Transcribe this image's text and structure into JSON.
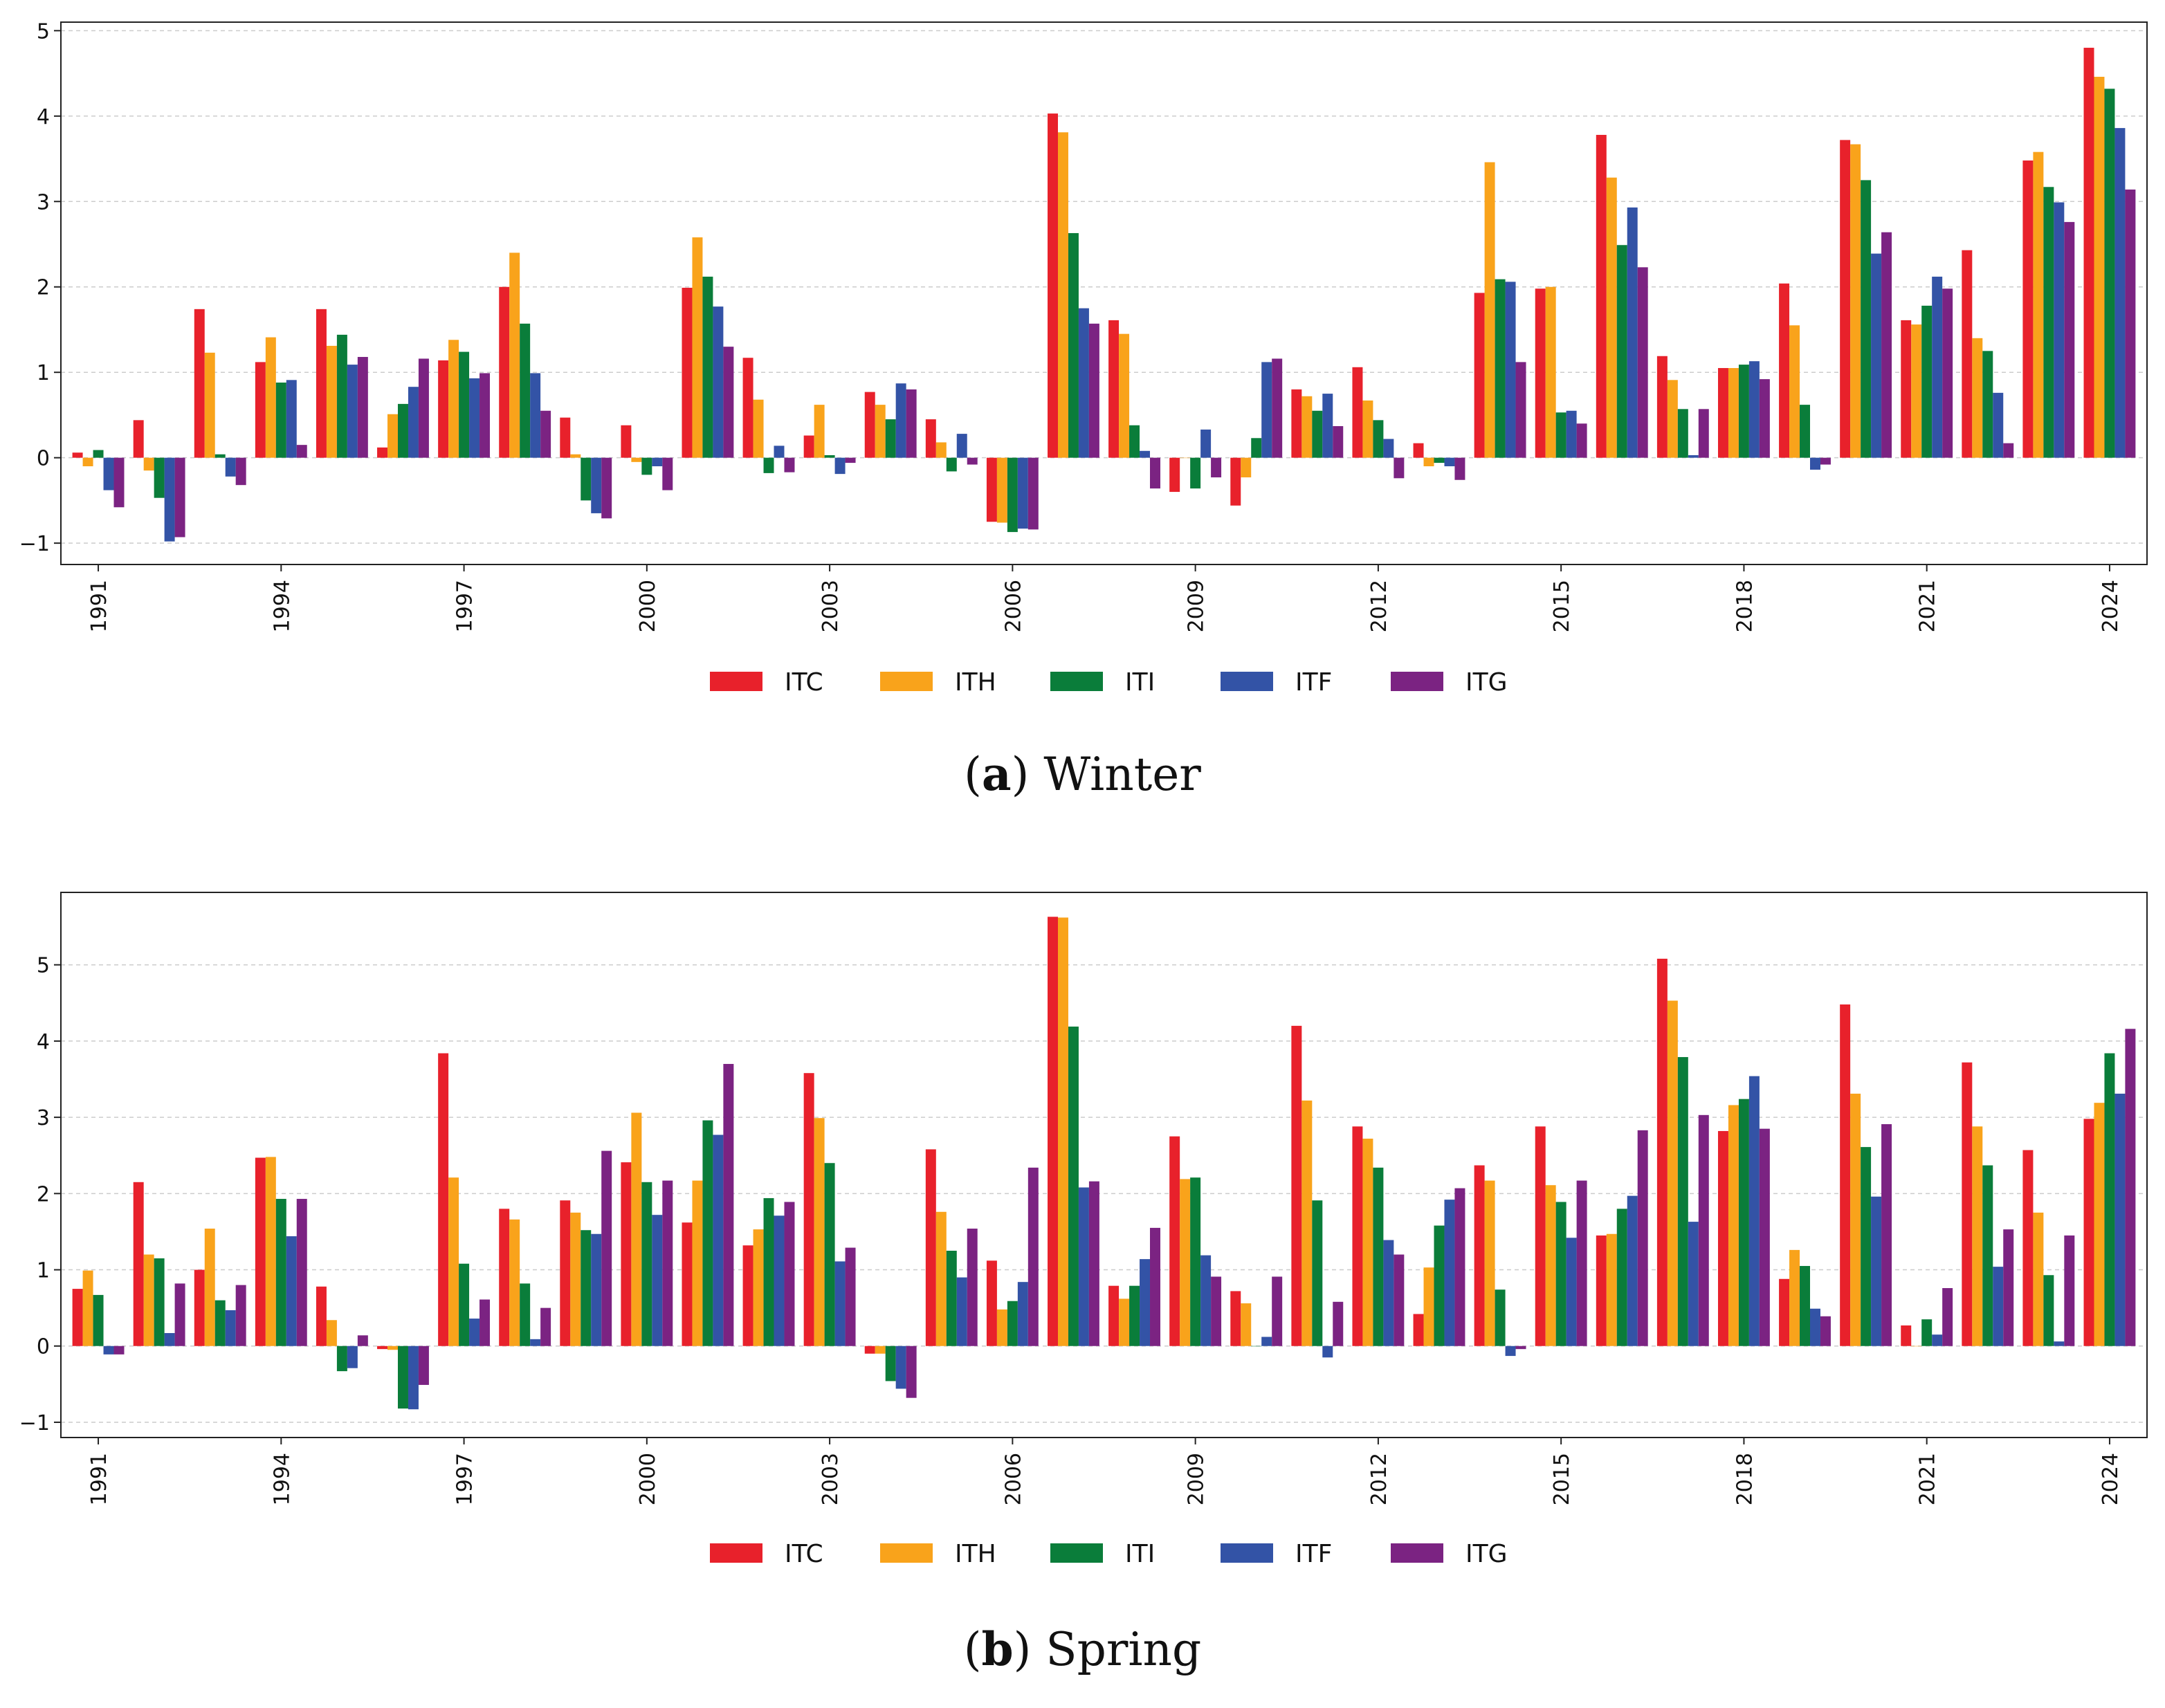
{
  "series_meta": [
    {
      "name": "ITC",
      "color": "#e8212b"
    },
    {
      "name": "ITH",
      "color": "#f9a31b"
    },
    {
      "name": "ITI",
      "color": "#0a7d3a"
    },
    {
      "name": "ITF",
      "color": "#3353a6"
    },
    {
      "name": "ITG",
      "color": "#7b2382"
    }
  ],
  "chart_data": [
    {
      "type": "bar",
      "caption_letter": "a",
      "caption_text": "Winter",
      "categories": [
        "1991",
        "1992",
        "1993",
        "1994",
        "1995",
        "1996",
        "1997",
        "1998",
        "1999",
        "2000",
        "2001",
        "2002",
        "2003",
        "2004",
        "2005",
        "2006",
        "2007",
        "2008",
        "2009",
        "2010",
        "2011",
        "2012",
        "2013",
        "2014",
        "2015",
        "2016",
        "2017",
        "2018",
        "2019",
        "2020",
        "2021",
        "2022",
        "2023",
        "2024"
      ],
      "x_tick_labels": [
        "1991",
        "1994",
        "1997",
        "2000",
        "2003",
        "2006",
        "2009",
        "2012",
        "2015",
        "2018",
        "2021",
        "2024"
      ],
      "ylim": [
        -1.25,
        5.1
      ],
      "yticks": [
        -1,
        0,
        1,
        2,
        3,
        4,
        5
      ],
      "ytick_labels": [
        "−1",
        "0",
        "1",
        "2",
        "3",
        "4",
        "5"
      ],
      "grid": true,
      "legend": "bottom-center",
      "series": [
        {
          "name": "ITC",
          "values": [
            0.06,
            0.44,
            1.74,
            1.12,
            1.74,
            0.12,
            1.14,
            2.0,
            0.47,
            0.38,
            1.99,
            1.17,
            0.26,
            0.77,
            0.45,
            -0.75,
            4.03,
            1.61,
            -0.4,
            -0.56,
            0.8,
            1.06,
            0.17,
            1.93,
            1.98,
            3.78,
            1.19,
            1.05,
            2.04,
            3.72,
            1.61,
            2.43,
            3.48,
            4.8
          ]
        },
        {
          "name": "ITH",
          "values": [
            -0.1,
            -0.15,
            1.23,
            1.41,
            1.31,
            0.51,
            1.38,
            2.4,
            0.04,
            -0.05,
            2.58,
            0.68,
            0.62,
            0.62,
            0.18,
            -0.76,
            3.81,
            1.45,
            0.0,
            -0.23,
            0.72,
            0.67,
            -0.1,
            3.46,
            2.0,
            3.28,
            0.91,
            1.05,
            1.55,
            3.67,
            1.56,
            1.4,
            3.58,
            4.46
          ]
        },
        {
          "name": "ITI",
          "values": [
            0.09,
            -0.47,
            0.04,
            0.88,
            1.44,
            0.63,
            1.24,
            1.57,
            -0.5,
            -0.2,
            2.12,
            -0.18,
            0.03,
            0.45,
            -0.16,
            -0.87,
            2.63,
            0.38,
            -0.36,
            0.23,
            0.55,
            0.44,
            -0.06,
            2.09,
            0.53,
            2.49,
            0.57,
            1.09,
            0.62,
            3.25,
            1.78,
            1.25,
            3.17,
            4.32
          ]
        },
        {
          "name": "ITF",
          "values": [
            -0.38,
            -0.98,
            -0.22,
            0.91,
            1.09,
            0.83,
            0.93,
            0.99,
            -0.65,
            -0.1,
            1.77,
            0.14,
            -0.19,
            0.87,
            0.28,
            -0.83,
            1.75,
            0.08,
            0.33,
            1.12,
            0.75,
            0.22,
            -0.1,
            2.06,
            0.55,
            2.93,
            0.03,
            1.13,
            -0.14,
            2.39,
            2.12,
            0.76,
            2.99,
            3.86
          ]
        },
        {
          "name": "ITG",
          "values": [
            -0.58,
            -0.93,
            -0.32,
            0.15,
            1.18,
            1.16,
            0.99,
            0.55,
            -0.71,
            -0.38,
            1.3,
            -0.17,
            -0.06,
            0.8,
            -0.08,
            -0.84,
            1.57,
            -0.36,
            -0.23,
            1.16,
            0.37,
            -0.24,
            -0.26,
            1.12,
            0.4,
            2.23,
            0.57,
            0.92,
            -0.08,
            2.64,
            1.98,
            0.17,
            2.76,
            3.14
          ]
        }
      ]
    },
    {
      "type": "bar",
      "caption_letter": "b",
      "caption_text": "Spring",
      "categories": [
        "1991",
        "1992",
        "1993",
        "1994",
        "1995",
        "1996",
        "1997",
        "1998",
        "1999",
        "2000",
        "2001",
        "2002",
        "2003",
        "2004",
        "2005",
        "2006",
        "2007",
        "2008",
        "2009",
        "2010",
        "2011",
        "2012",
        "2013",
        "2014",
        "2015",
        "2016",
        "2017",
        "2018",
        "2019",
        "2020",
        "2021",
        "2022",
        "2023",
        "2024"
      ],
      "x_tick_labels": [
        "1991",
        "1994",
        "1997",
        "2000",
        "2003",
        "2006",
        "2009",
        "2012",
        "2015",
        "2018",
        "2021",
        "2024"
      ],
      "ylim": [
        -1.2,
        5.95
      ],
      "yticks": [
        -1,
        0,
        1,
        2,
        3,
        4,
        5
      ],
      "ytick_labels": [
        "−1",
        "0",
        "1",
        "2",
        "3",
        "4",
        "5"
      ],
      "grid": true,
      "legend": "bottom-center",
      "series": [
        {
          "name": "ITC",
          "values": [
            0.75,
            2.15,
            1.0,
            2.47,
            0.78,
            -0.04,
            3.84,
            1.8,
            1.91,
            2.41,
            1.62,
            1.32,
            3.58,
            -0.1,
            2.58,
            1.12,
            5.63,
            0.79,
            2.75,
            0.72,
            4.2,
            2.88,
            0.42,
            2.37,
            2.88,
            1.45,
            5.08,
            2.82,
            0.88,
            4.48,
            0.27,
            3.72,
            2.57,
            2.98
          ]
        },
        {
          "name": "ITH",
          "values": [
            0.99,
            1.2,
            1.54,
            2.48,
            0.34,
            -0.05,
            2.21,
            1.66,
            1.75,
            3.06,
            2.17,
            1.53,
            2.99,
            -0.1,
            1.76,
            0.48,
            5.62,
            0.62,
            2.19,
            0.56,
            3.22,
            2.72,
            1.03,
            2.17,
            2.11,
            1.47,
            4.53,
            3.16,
            1.26,
            3.31,
            0.0,
            2.88,
            1.75,
            3.19
          ]
        },
        {
          "name": "ITI",
          "values": [
            0.67,
            1.15,
            0.6,
            1.93,
            -0.33,
            -0.82,
            1.08,
            0.82,
            1.52,
            2.15,
            2.96,
            1.94,
            2.4,
            -0.46,
            1.25,
            0.59,
            4.19,
            0.79,
            2.21,
            0.0,
            1.91,
            2.34,
            1.58,
            0.74,
            1.89,
            1.8,
            3.79,
            3.24,
            1.05,
            2.61,
            0.35,
            2.37,
            0.93,
            3.84
          ]
        },
        {
          "name": "ITF",
          "values": [
            -0.11,
            0.17,
            0.47,
            1.44,
            -0.29,
            -0.83,
            0.36,
            0.09,
            1.47,
            1.72,
            2.77,
            1.71,
            1.11,
            -0.56,
            0.9,
            0.84,
            2.08,
            1.14,
            1.19,
            0.12,
            -0.15,
            1.39,
            1.92,
            -0.13,
            1.42,
            1.97,
            1.63,
            3.54,
            0.49,
            1.96,
            0.15,
            1.04,
            0.06,
            3.31
          ]
        },
        {
          "name": "ITG",
          "values": [
            -0.11,
            0.82,
            0.8,
            1.93,
            0.14,
            -0.51,
            0.61,
            0.5,
            2.56,
            2.17,
            3.7,
            1.89,
            1.29,
            -0.68,
            1.54,
            2.34,
            2.16,
            1.55,
            0.91,
            0.91,
            0.58,
            1.2,
            2.07,
            -0.04,
            2.17,
            2.83,
            3.03,
            2.85,
            0.39,
            2.91,
            0.76,
            1.53,
            1.45,
            4.16
          ]
        }
      ]
    }
  ]
}
